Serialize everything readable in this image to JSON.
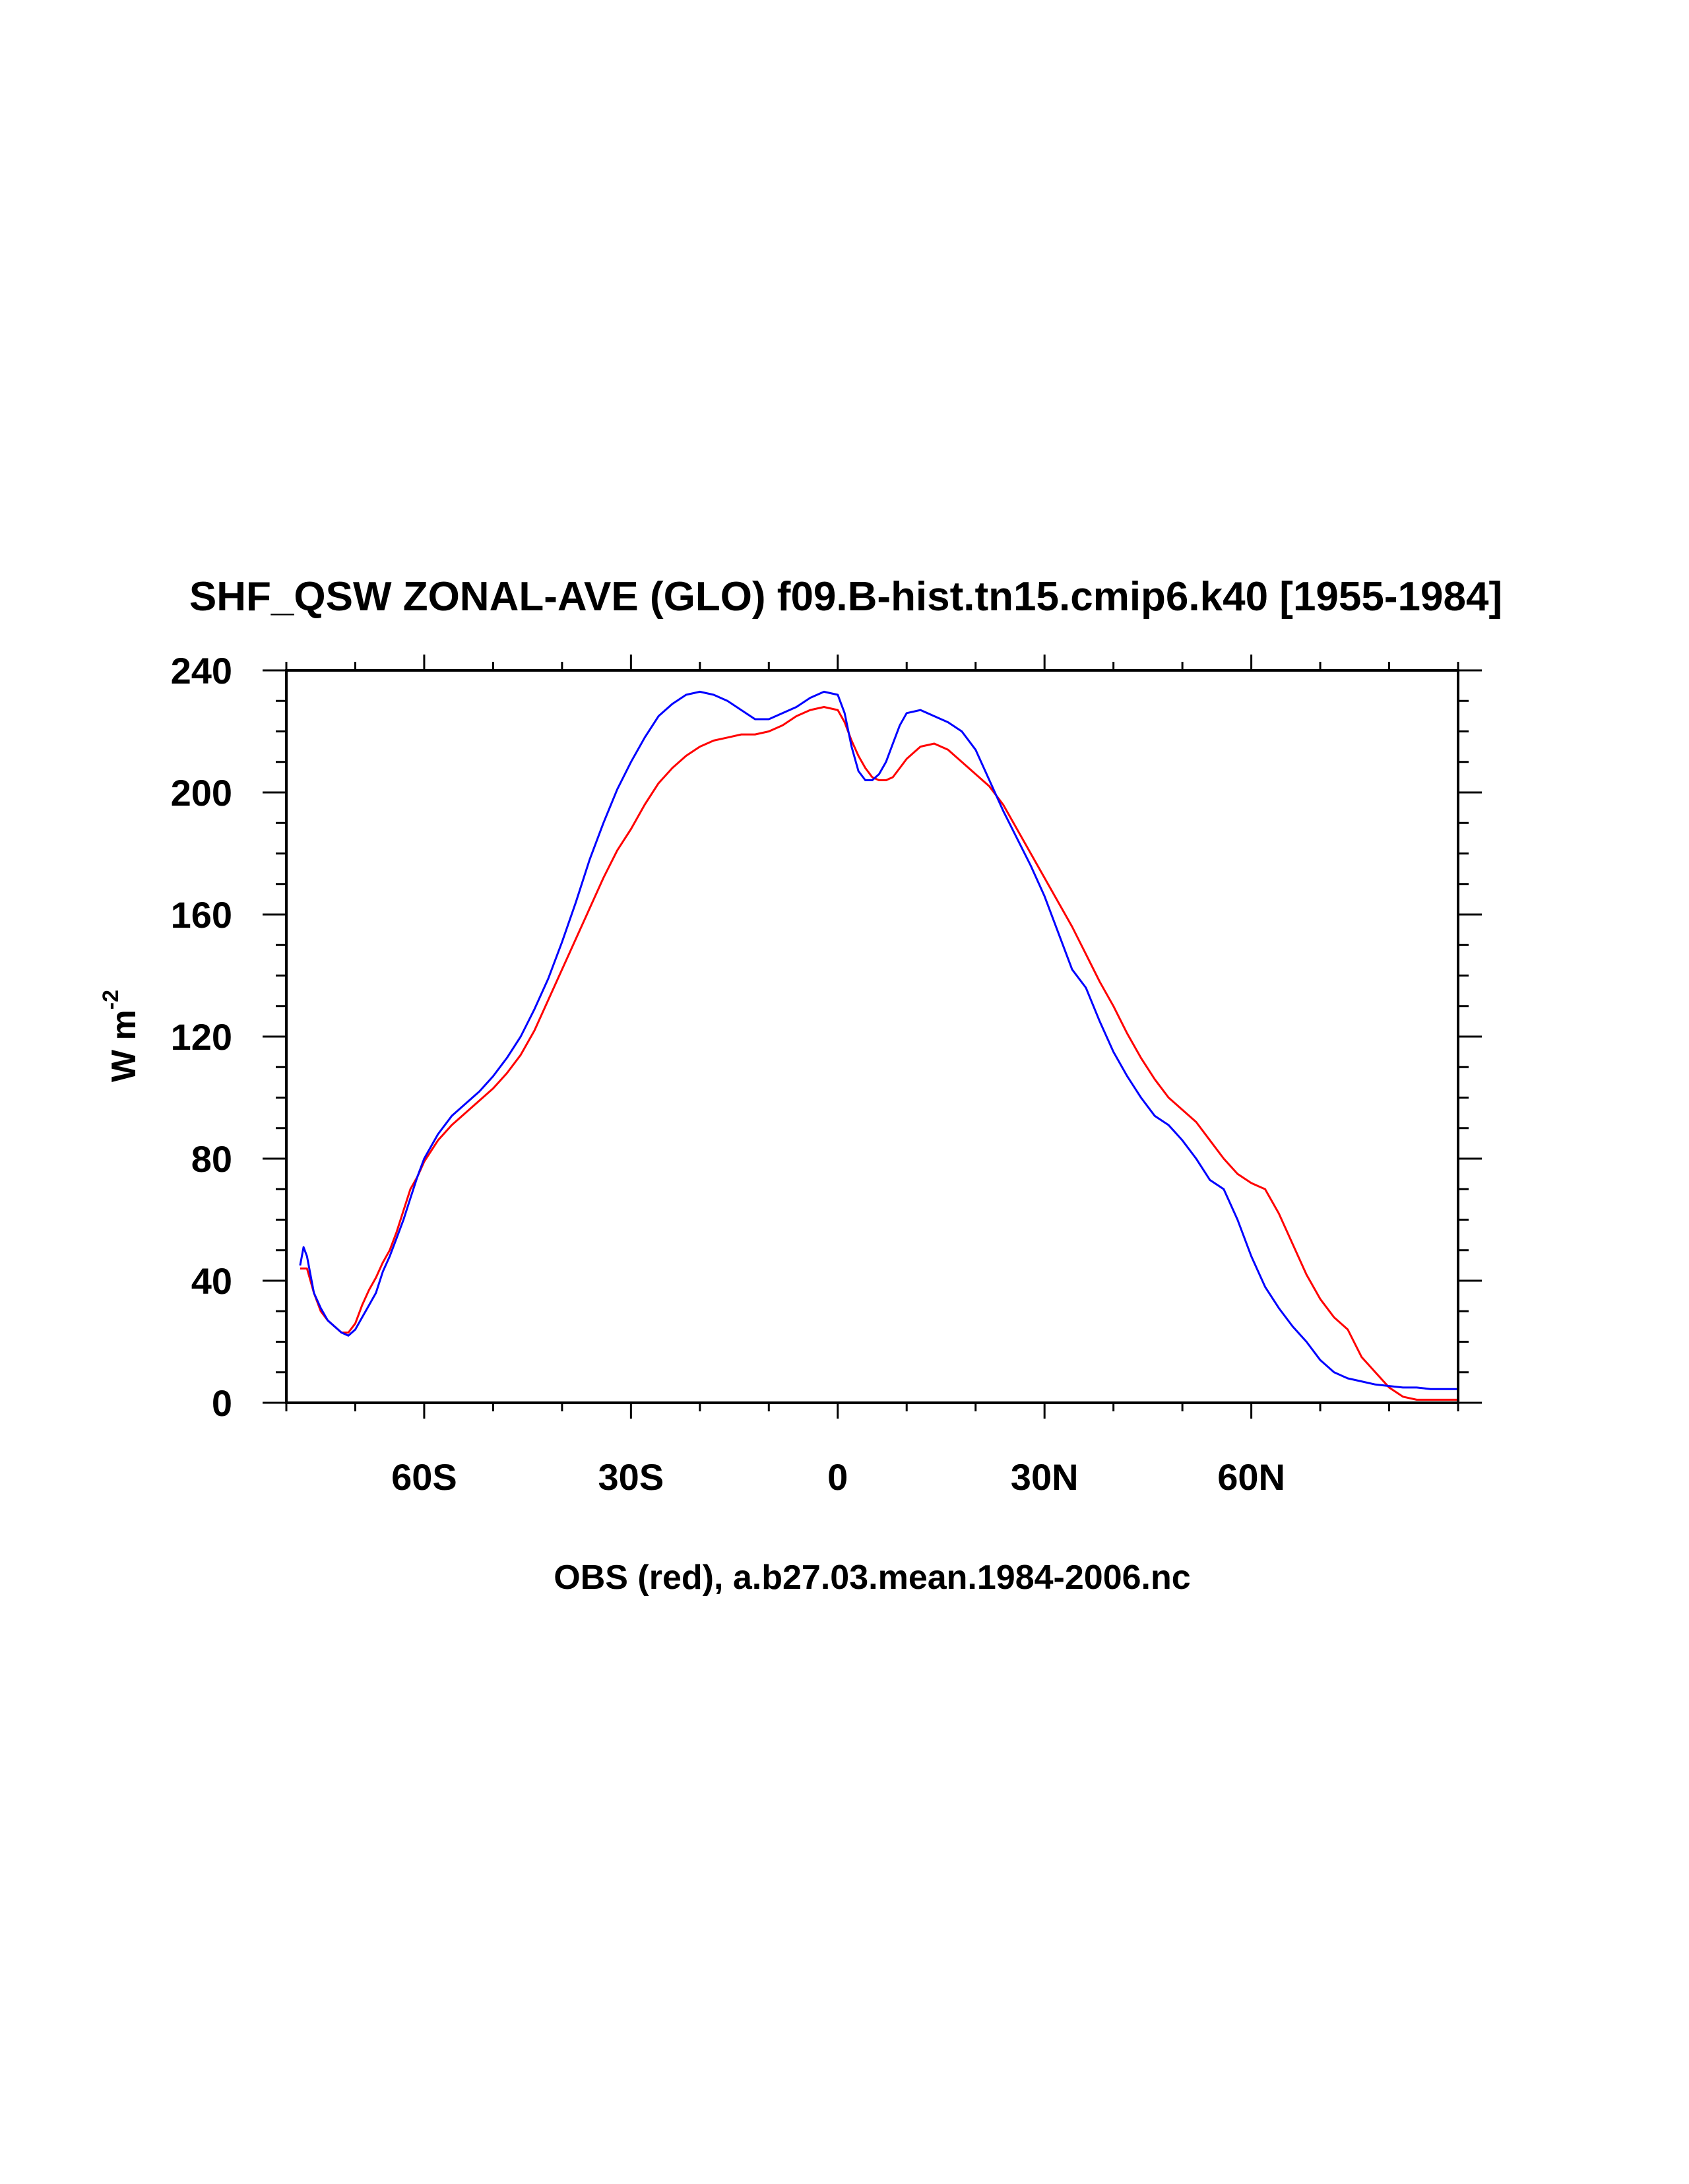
{
  "chart_data": {
    "type": "line",
    "title": "SHF_QSW ZONAL-AVE (GLO) f09.B-hist.tn15.cmip6.k40 [1955-1984]",
    "xlabel": "OBS (red), a.b27.03.mean.1984-2006.nc",
    "ylabel": "W m",
    "ylabel_sup": "-2",
    "xlim": [
      -80,
      90
    ],
    "ylim": [
      0,
      240
    ],
    "x_ticks": [
      {
        "value": -60,
        "label": "60S"
      },
      {
        "value": -30,
        "label": "30S"
      },
      {
        "value": 0,
        "label": "0"
      },
      {
        "value": 30,
        "label": "30N"
      },
      {
        "value": 60,
        "label": "60N"
      }
    ],
    "y_ticks": [
      0,
      40,
      80,
      120,
      160,
      200,
      240
    ],
    "series": [
      {
        "color": "#ff0000",
        "x": [
          -78,
          -77,
          -76,
          -75,
          -74,
          -73,
          -72,
          -71,
          -70,
          -69,
          -68,
          -67,
          -66,
          -65,
          -64,
          -63,
          -62,
          -61,
          -60,
          -58,
          -56,
          -54,
          -52,
          -50,
          -48,
          -46,
          -44,
          -42,
          -40,
          -38,
          -36,
          -34,
          -32,
          -30,
          -28,
          -26,
          -24,
          -22,
          -20,
          -18,
          -16,
          -14,
          -12,
          -10,
          -8,
          -6,
          -4,
          -2,
          0,
          1,
          2,
          3,
          4,
          5,
          6,
          7,
          8,
          9,
          10,
          12,
          14,
          16,
          18,
          20,
          22,
          24,
          26,
          28,
          30,
          32,
          34,
          36,
          38,
          40,
          42,
          44,
          46,
          48,
          50,
          52,
          54,
          56,
          58,
          60,
          62,
          64,
          66,
          68,
          70,
          72,
          74,
          76,
          78,
          80,
          82,
          84,
          86,
          88,
          90
        ],
        "values": [
          44,
          44,
          36,
          30,
          27,
          25,
          23,
          23,
          26,
          32,
          37,
          41,
          46,
          50,
          56,
          63,
          70,
          74,
          79,
          86,
          91,
          95,
          99,
          103,
          108,
          114,
          122,
          132,
          142,
          152,
          162,
          172,
          181,
          188,
          196,
          203,
          208,
          212,
          215,
          217,
          218,
          219,
          219,
          220,
          222,
          225,
          227,
          228,
          227,
          223,
          217,
          212,
          208,
          205,
          204,
          204,
          205,
          208,
          211,
          215,
          216,
          214,
          210,
          206,
          202,
          196,
          188,
          180,
          172,
          164,
          156,
          147,
          138,
          130,
          121,
          113,
          106,
          100,
          96,
          92,
          86,
          80,
          75,
          72,
          70,
          62,
          52,
          42,
          34,
          28,
          24,
          15,
          10,
          5,
          2,
          1,
          1,
          1,
          1
        ]
      },
      {
        "color": "#0000ff",
        "x": [
          -78,
          -77.5,
          -77,
          -76,
          -75,
          -74,
          -73,
          -72,
          -71,
          -70,
          -69,
          -68,
          -67,
          -66,
          -65,
          -64,
          -63,
          -62,
          -61,
          -60,
          -58,
          -56,
          -54,
          -52,
          -50,
          -48,
          -46,
          -44,
          -42,
          -40,
          -38,
          -36,
          -34,
          -32,
          -30,
          -28,
          -26,
          -24,
          -22,
          -20,
          -18,
          -16,
          -14,
          -12,
          -10,
          -8,
          -6,
          -4,
          -2,
          0,
          1,
          2,
          3,
          4,
          5,
          6,
          7,
          8,
          9,
          10,
          12,
          14,
          16,
          18,
          20,
          22,
          24,
          26,
          28,
          30,
          32,
          34,
          36,
          38,
          40,
          42,
          44,
          46,
          48,
          50,
          52,
          54,
          56,
          58,
          60,
          62,
          64,
          66,
          68,
          70,
          72,
          74,
          76,
          78,
          80,
          82,
          84,
          86,
          88,
          90
        ],
        "values": [
          45,
          51,
          48,
          36,
          31,
          27,
          25,
          23,
          22,
          24,
          28,
          32,
          36,
          43,
          48,
          54,
          60,
          67,
          74,
          80,
          88,
          94,
          98,
          102,
          107,
          113,
          120,
          129,
          139,
          151,
          164,
          178,
          190,
          201,
          210,
          218,
          225,
          229,
          232,
          233,
          232,
          230,
          227,
          224,
          224,
          226,
          228,
          231,
          233,
          232,
          226,
          215,
          207,
          204,
          204,
          206,
          210,
          216,
          222,
          226,
          227,
          225,
          223,
          220,
          214,
          204,
          194,
          185,
          176,
          166,
          154,
          142,
          136,
          125,
          115,
          107,
          100,
          94,
          91,
          86,
          80,
          73,
          70,
          60,
          48,
          38,
          31,
          25,
          20,
          14,
          10,
          8,
          7,
          6,
          5.5,
          5,
          5,
          4.5,
          4.5,
          4.5
        ]
      }
    ]
  }
}
